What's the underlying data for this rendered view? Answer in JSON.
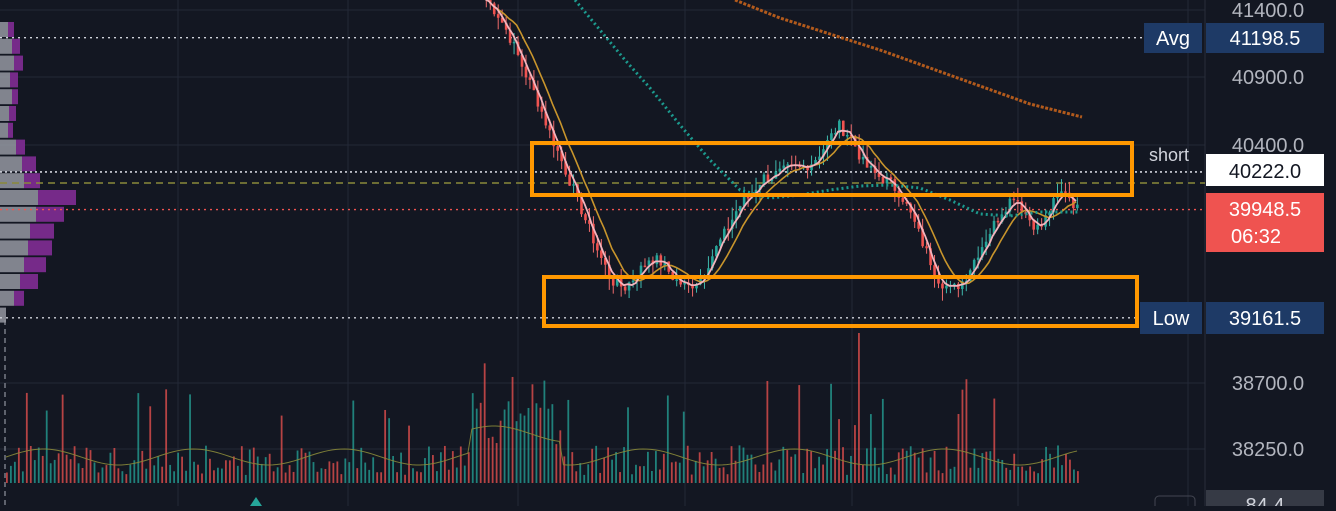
{
  "colors": {
    "background": "#131722",
    "grid": "#232837",
    "axis_text": "#b2b5be",
    "candle_up": "#26a69a",
    "candle_down": "#ef5350",
    "wick_up": "#3fb9ae",
    "wick_down": "#f06b6b",
    "ma_fast": "#f3b4bd",
    "ma_mid": "#c8952c",
    "ma_slow": "#1c9a8e",
    "ma_long": "#b25a1c",
    "vol_ma": "#8a8a3a",
    "zone_box": "#ff9800",
    "badge_blue": "#1e3a66",
    "badge_red": "#ef5350",
    "badge_white": "#ffffff",
    "vp_up": "#9598a1",
    "vp_down": "#7b2b8f",
    "dotted_white": "#d1d4dc",
    "dotted_red": "#ef5350",
    "dashed_olive": "#8a8a3a"
  },
  "price_axis": {
    "ticks": [
      "41400.0",
      "40900.0",
      "40400.0",
      "38700.0",
      "38250.0"
    ],
    "bottom_partial": "84.4"
  },
  "labels": {
    "avg_tag": "Avg",
    "avg_value": "41198.5",
    "short_tag": "short",
    "short_value": "40222.0",
    "last_price": "39948.5",
    "countdown": "06:32",
    "low_tag": "Low",
    "low_value": "39161.5"
  },
  "chart_data": {
    "type": "candlestick",
    "y_axis_ticks": [
      41400.0,
      40900.0,
      40400.0,
      38700.0,
      38250.0
    ],
    "levels": {
      "avg": 41198.5,
      "short": 40222.0,
      "last": 39948.5,
      "low": 39161.5
    },
    "zones": [
      {
        "name": "upper",
        "from": 40110,
        "to": 40500
      },
      {
        "name": "lower",
        "from": 39090,
        "to": 39460
      }
    ],
    "closes": [
      41480,
      41360,
      41180,
      40960,
      40760,
      40520,
      40300,
      40080,
      39850,
      39620,
      39430,
      39380,
      39480,
      39600,
      39560,
      39440,
      39380,
      39450,
      39620,
      39780,
      39960,
      40060,
      40180,
      40200,
      40240,
      40250,
      40300,
      40420,
      40560,
      40480,
      40280,
      40200,
      40150,
      40060,
      39860,
      39640,
      39440,
      39360,
      39440,
      39620,
      39780,
      39940,
      40060,
      39900,
      39800,
      39980,
      40100,
      39950
    ]
  }
}
